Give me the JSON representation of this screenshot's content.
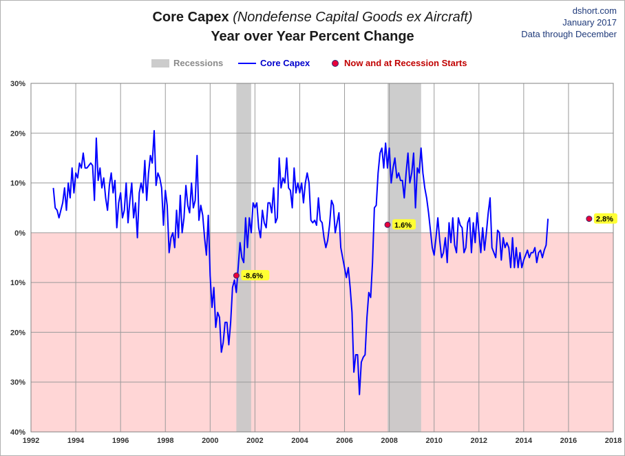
{
  "header": {
    "title_main": "Core Capex",
    "title_paren": "(Nondefense  Capital Goods ex Aircraft)",
    "title_line2": "Year over Year Percent Change",
    "credit_site": "dshort.com",
    "credit_date": "January 2017",
    "credit_note": "Data through December"
  },
  "legend": {
    "recessions": "Recessions",
    "series": "Core Capex",
    "markers": "Now and at Recession Starts"
  },
  "colors": {
    "line": "#0000ff",
    "recession": "#c8c8c8",
    "negative_zone": "#ffd6d6",
    "marker": "#e8003a",
    "annotation_bg": "#ffff33",
    "legend_recession_text": "#8a8a8a",
    "legend_series_text": "#0000cc",
    "legend_marker_text": "#c00000"
  },
  "chart_data": {
    "type": "line",
    "title": "Core Capex (Nondefense  Capital Goods ex Aircraft) Year over Year Percent Change",
    "xlim": [
      1992,
      2018
    ],
    "ylim": [
      -40,
      30
    ],
    "x_ticks": [
      1992,
      1994,
      1996,
      1998,
      2000,
      2002,
      2004,
      2006,
      2008,
      2010,
      2012,
      2014,
      2016,
      2018
    ],
    "x_tick_labels": [
      "1992",
      "1994",
      "1996",
      "1998",
      "2000",
      "2002",
      "2004",
      "2006",
      "2008",
      "2010",
      "2012",
      "2014",
      "2016",
      "2018"
    ],
    "y_ticks": [
      30,
      20,
      10,
      0,
      -10,
      -20,
      -30,
      -40
    ],
    "y_tick_labels": [
      "30%",
      "20%",
      "10%",
      "0%",
      "10%",
      "20%",
      "30%",
      "40%"
    ],
    "grid": true,
    "legend_position": "top",
    "recessions": [
      [
        2001.17,
        2001.83
      ],
      [
        2007.92,
        2009.42
      ]
    ],
    "series": [
      {
        "name": "Core Capex",
        "x_start": 1993.0,
        "step": 0.0833333,
        "values": [
          9.0,
          5.0,
          4.5,
          3.0,
          4.5,
          6.0,
          9.0,
          4.5,
          10.0,
          7.0,
          13.0,
          8.0,
          12.0,
          11.0,
          14.0,
          13.0,
          16.0,
          13.0,
          13.0,
          13.5,
          14.0,
          13.5,
          6.5,
          19.0,
          10.5,
          13.0,
          9.0,
          11.0,
          7.0,
          4.5,
          9.5,
          12.0,
          8.0,
          10.5,
          1.0,
          6.0,
          8.0,
          3.0,
          4.5,
          10.0,
          2.0,
          6.5,
          10.0,
          3.0,
          6.0,
          -1.0,
          8.0,
          10.0,
          8.0,
          14.5,
          6.5,
          12.0,
          15.5,
          14.0,
          20.5,
          9.5,
          12.0,
          11.0,
          9.0,
          1.5,
          8.5,
          5.5,
          -4.0,
          -1.0,
          0.0,
          -3.0,
          4.5,
          -1.0,
          7.5,
          0.0,
          3.0,
          9.5,
          5.5,
          4.0,
          10.0,
          5.0,
          6.5,
          15.5,
          2.5,
          5.5,
          3.5,
          -1.0,
          -4.5,
          3.5,
          -8.6,
          -15.0,
          -11.0,
          -19.0,
          -16.0,
          -17.0,
          -24.0,
          -22.0,
          -18.0,
          -18.0,
          -22.5,
          -18.0,
          -11.0,
          -9.5,
          -12.0,
          -7.0,
          -2.0,
          -5.0,
          -6.0,
          3.0,
          -3.0,
          3.0,
          0.0,
          6.0,
          5.0,
          6.0,
          1.0,
          -1.0,
          4.5,
          2.0,
          1.0,
          6.0,
          6.0,
          4.0,
          9.0,
          2.0,
          3.0,
          15.0,
          9.0,
          11.0,
          10.0,
          15.0,
          9.0,
          8.5,
          5.0,
          13.0,
          8.0,
          10.0,
          8.0,
          10.0,
          6.0,
          10.0,
          12.0,
          10.0,
          2.5,
          2.0,
          2.5,
          1.5,
          7.0,
          2.5,
          2.0,
          -1.0,
          -3.0,
          -1.5,
          1.6,
          6.5,
          5.5,
          0.0,
          2.0,
          4.0,
          -3.0,
          -5.0,
          -7.0,
          -9.0,
          -7.0,
          -11.0,
          -16.0,
          -28.0,
          -24.5,
          -24.5,
          -32.5,
          -26.0,
          -25.0,
          -24.5,
          -17.0,
          -12.0,
          -13.0,
          -6.0,
          5.0,
          5.5,
          12.0,
          16.0,
          17.0,
          13.0,
          18.0,
          13.0,
          17.0,
          10.0,
          13.0,
          15.0,
          11.0,
          12.0,
          10.5,
          10.5,
          7.0,
          12.0,
          16.0,
          10.0,
          12.0,
          16.0,
          5.0,
          13.0,
          12.0,
          17.0,
          12.0,
          9.0,
          7.0,
          4.0,
          0.5,
          -3.0,
          -4.5,
          -1.0,
          3.0,
          -1.5,
          -5.0,
          -4.0,
          -1.0,
          -6.0,
          2.0,
          -2.0,
          3.0,
          -2.5,
          -4.0,
          3.0,
          1.5,
          1.0,
          -4.0,
          -3.0,
          2.0,
          3.0,
          -4.0,
          2.0,
          -2.0,
          4.0,
          0.0,
          -4.0,
          1.0,
          -3.5,
          0.0,
          4.0,
          7.0,
          -3.0,
          -4.0,
          -5.0,
          0.5,
          0.0,
          -5.5,
          -1.0,
          -3.0,
          -2.0,
          -3.0,
          -7.0,
          -1.0,
          -7.0,
          -3.0,
          -7.0,
          -4.0,
          -7.0,
          -5.5,
          -4.5,
          -3.5,
          -5.0,
          -4.0,
          -4.0,
          -3.0,
          -6.0,
          -4.0,
          -3.5,
          -5.0,
          -3.5,
          -2.5,
          2.8
        ]
      }
    ],
    "markers": [
      {
        "x": 2001.17,
        "y": -8.6,
        "label": "-8.6%"
      },
      {
        "x": 2007.92,
        "y": 1.6,
        "label": "1.6%"
      },
      {
        "x": 2016.92,
        "y": 2.8,
        "label": "2.8%"
      }
    ]
  }
}
